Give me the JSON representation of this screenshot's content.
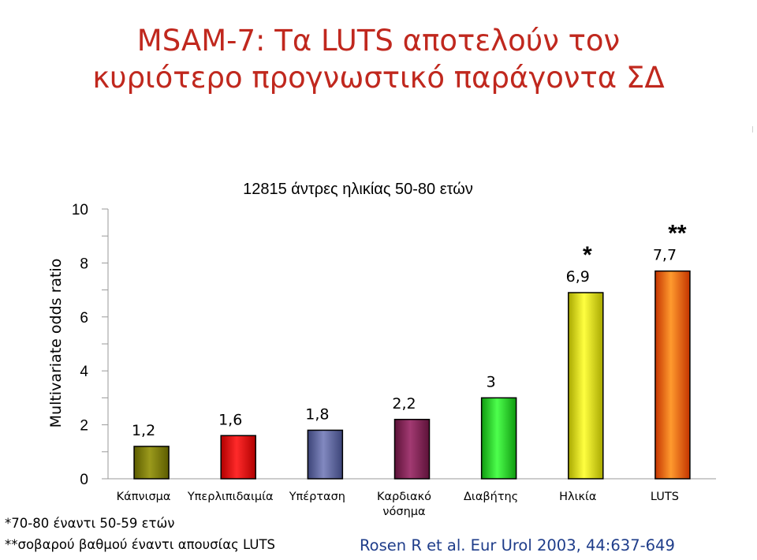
{
  "slide": {
    "title_lines": [
      "MSAM-7: Τα LUTS αποτελούν τον",
      "κυριότερο προγνωστικό παράγοντα ΣΔ"
    ],
    "footnotes": [
      "*70-80 έναντι 50-59 ετών",
      "**σοβαρού βαθμού έναντι απουσίας LUTS"
    ],
    "reference": "Rosen R et al. Eur Urol 2003, 44:637-649"
  },
  "chart_data": {
    "type": "bar",
    "title": "12815 άντρες ηλικίας 50-80 ετών",
    "ylabel": "Multivariate odds ratio",
    "xlabel": "",
    "ylim": [
      0,
      10
    ],
    "yticks": [
      "0",
      "2",
      "4",
      "6",
      "8",
      "10"
    ],
    "grid": false,
    "legend": "none",
    "categories": [
      [
        "Κάπνισμα"
      ],
      [
        "Υπερλιπιδαιμία"
      ],
      [
        "Υπέρταση"
      ],
      [
        "Καρδιακό",
        "νόσημα"
      ],
      [
        "Διαβήτης"
      ],
      [
        "Ηλικία"
      ],
      [
        "LUTS"
      ]
    ],
    "values": [
      1.2,
      1.6,
      1.8,
      2.2,
      3,
      6.9,
      7.7
    ],
    "value_labels": [
      "1,2",
      "1,6",
      "1,8",
      "2,2",
      "3",
      "6,9",
      "7,7"
    ],
    "annotations": [
      "",
      "",
      "",
      "",
      "",
      "*",
      "**"
    ],
    "colors": [
      [
        "#9b9a1c",
        "#5c5c00"
      ],
      [
        "#ff2a2a",
        "#b00000"
      ],
      [
        "#8289c0",
        "#3c4478"
      ],
      [
        "#a23a72",
        "#5c1238"
      ],
      [
        "#4dff4d",
        "#0f9a0f"
      ],
      [
        "#ffff40",
        "#a8a800"
      ],
      [
        "#ff9a2e",
        "#c43400"
      ]
    ]
  }
}
